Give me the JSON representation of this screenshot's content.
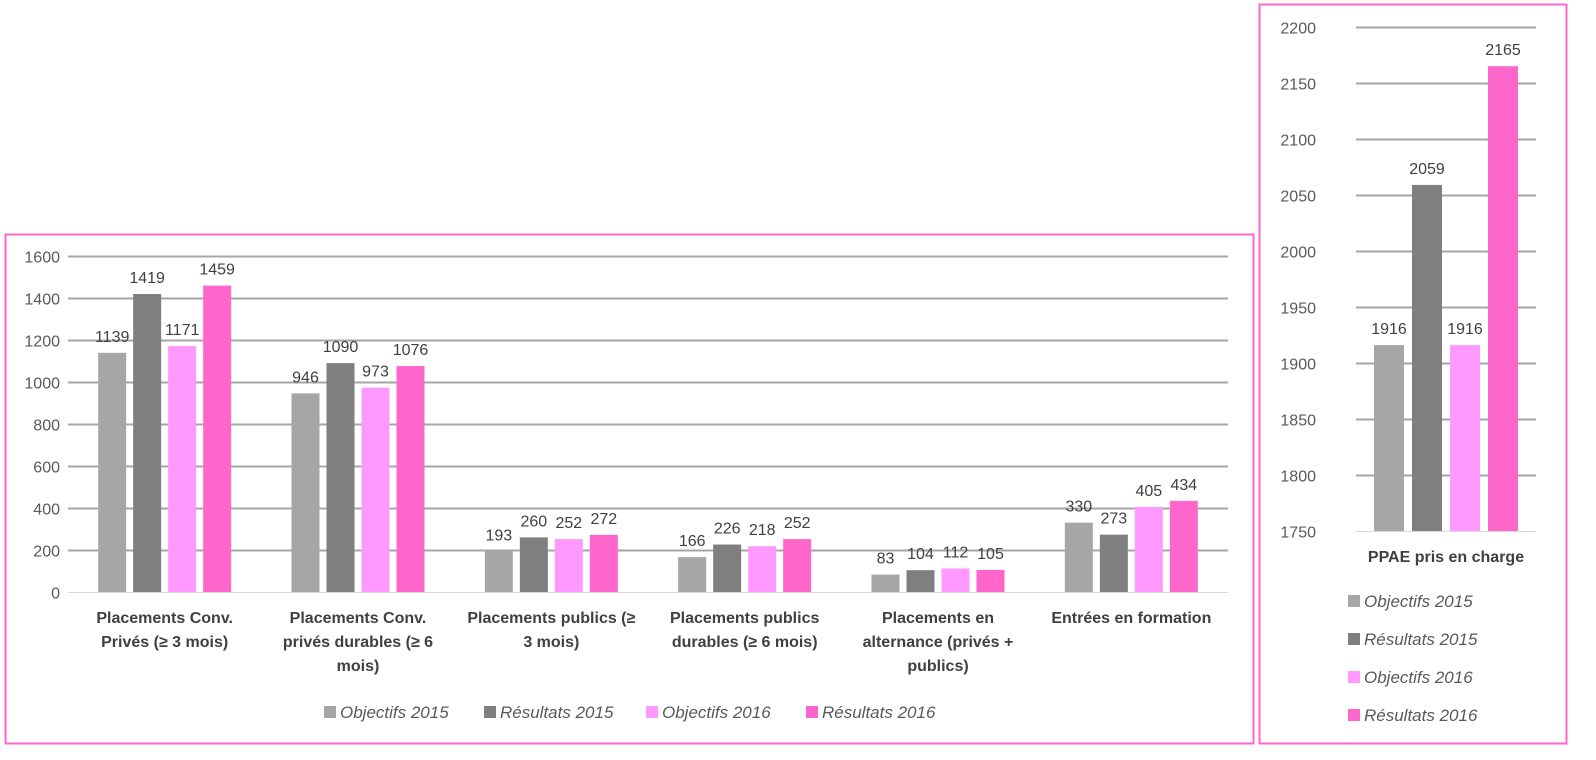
{
  "chart_data": [
    {
      "type": "bar",
      "title": "",
      "xlabel": "",
      "ylabel": "",
      "ylim": [
        0,
        1600
      ],
      "yticks": [
        0,
        200,
        400,
        600,
        800,
        1000,
        1200,
        1400,
        1600
      ],
      "grid": true,
      "legend_position": "bottom",
      "categories": [
        [
          "Placements Conv.",
          "Privés (≥ 3 mois)"
        ],
        [
          "Placements Conv.",
          "privés durables (≥ 6",
          "mois)"
        ],
        [
          "Placements publics (≥",
          "3 mois)"
        ],
        [
          "Placements publics",
          "durables (≥ 6 mois)"
        ],
        [
          "Placements en",
          "alternance (privés +",
          "publics)"
        ],
        [
          "Entrées en formation"
        ]
      ],
      "series": [
        {
          "name": "Objectifs 2015",
          "color": "#a6a6a6",
          "values": [
            1139,
            946,
            193,
            166,
            83,
            330
          ]
        },
        {
          "name": "Résultats 2015",
          "color": "#7f7f7f",
          "values": [
            1419,
            1090,
            260,
            226,
            104,
            273
          ]
        },
        {
          "name": "Objectifs 2016",
          "color": "#ff99ff",
          "values": [
            1171,
            973,
            252,
            218,
            112,
            405
          ]
        },
        {
          "name": "Résultats 2016",
          "color": "#ff66cc",
          "values": [
            1459,
            1076,
            272,
            252,
            105,
            434
          ]
        }
      ]
    },
    {
      "type": "bar",
      "title": "",
      "xlabel": "",
      "ylabel": "",
      "ylim": [
        1750,
        2200
      ],
      "yticks": [
        1750,
        1800,
        1850,
        1900,
        1950,
        2000,
        2050,
        2100,
        2150,
        2200
      ],
      "grid": true,
      "legend_position": "bottom",
      "categories": [
        [
          "PPAE pris en charge"
        ]
      ],
      "series": [
        {
          "name": "Objectifs 2015",
          "color": "#a6a6a6",
          "values": [
            1916
          ]
        },
        {
          "name": "Résultats 2015",
          "color": "#7f7f7f",
          "values": [
            2059
          ]
        },
        {
          "name": "Objectifs 2016",
          "color": "#ff99ff",
          "values": [
            1916
          ]
        },
        {
          "name": "Résultats 2016",
          "color": "#ff66cc",
          "values": [
            2165
          ]
        }
      ]
    }
  ],
  "frame_color": "#ff66cc"
}
